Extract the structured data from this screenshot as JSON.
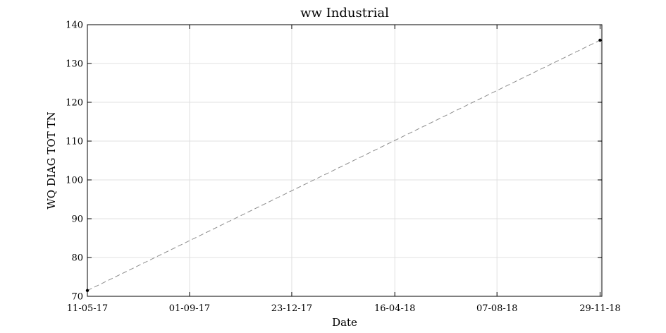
{
  "chart_data": {
    "type": "line",
    "title": "ww Industrial",
    "xlabel": "Date",
    "ylabel": "WQ DIAG TOT TN",
    "x_type": "date",
    "x_date_format": "DD-MM-YY",
    "xlim": [
      "2017-05-11",
      "2018-12-01"
    ],
    "ylim": [
      70,
      140
    ],
    "x_ticks": [
      "2017-05-11",
      "2017-09-01",
      "2017-12-23",
      "2018-04-16",
      "2018-08-07",
      "2018-11-29"
    ],
    "x_tick_labels": [
      "11-05-17",
      "01-09-17",
      "23-12-17",
      "16-04-18",
      "07-08-18",
      "29-11-18"
    ],
    "y_ticks": [
      70,
      80,
      90,
      100,
      110,
      120,
      130,
      140
    ],
    "grid": true,
    "series": [
      {
        "x": [
          "2017-05-11",
          "2018-11-29"
        ],
        "y": [
          71.5,
          136
        ],
        "line_style": "dashed",
        "line_color": "#8c8c8c",
        "marker_color": "#000000"
      }
    ]
  }
}
